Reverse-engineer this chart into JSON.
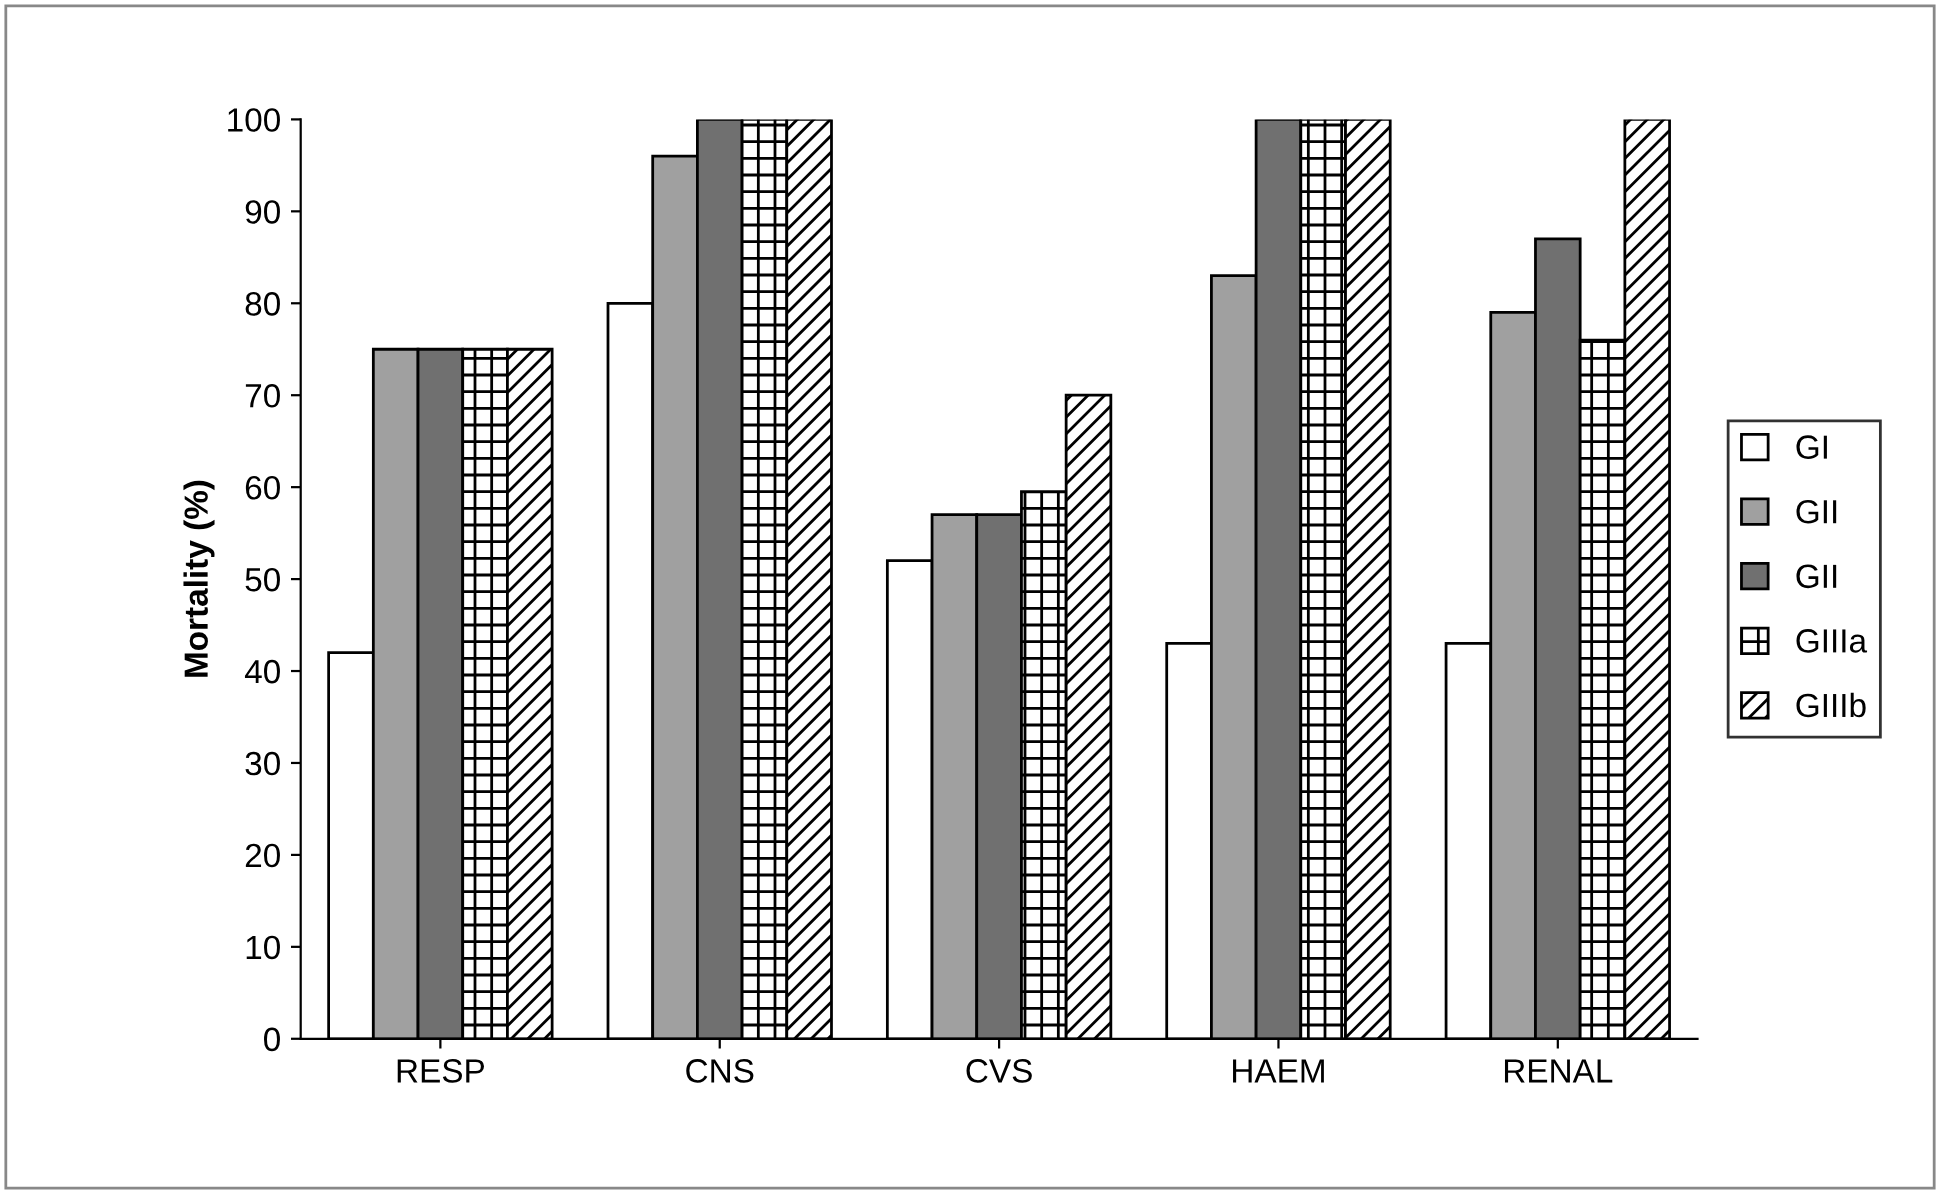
{
  "chart_data": {
    "type": "bar",
    "ylabel": "Mortality (%)",
    "categories": [
      "RESP",
      "CNS",
      "CVS",
      "HAEM",
      "RENAL"
    ],
    "series": [
      {
        "name": "GI",
        "color": "#ffffff",
        "values": [
          42,
          80,
          52,
          43,
          43
        ]
      },
      {
        "name": "GII",
        "color": "#a0a0a0",
        "values": [
          75,
          96,
          57,
          83,
          79
        ]
      },
      {
        "name": "GII",
        "color": "#707070",
        "values": [
          75,
          100,
          57,
          100,
          87
        ]
      },
      {
        "name": "GIIIa",
        "color": "#000000",
        "values": [
          75,
          100,
          59.5,
          100,
          76
        ]
      },
      {
        "name": "GIIIb",
        "color": "#000000",
        "values": [
          75,
          100,
          70,
          100,
          100
        ]
      }
    ],
    "ylim": [
      0,
      100
    ],
    "yticks": [
      0,
      10,
      20,
      30,
      40,
      50,
      60,
      70,
      80,
      90,
      100
    ],
    "grid": false,
    "legend": "right"
  }
}
